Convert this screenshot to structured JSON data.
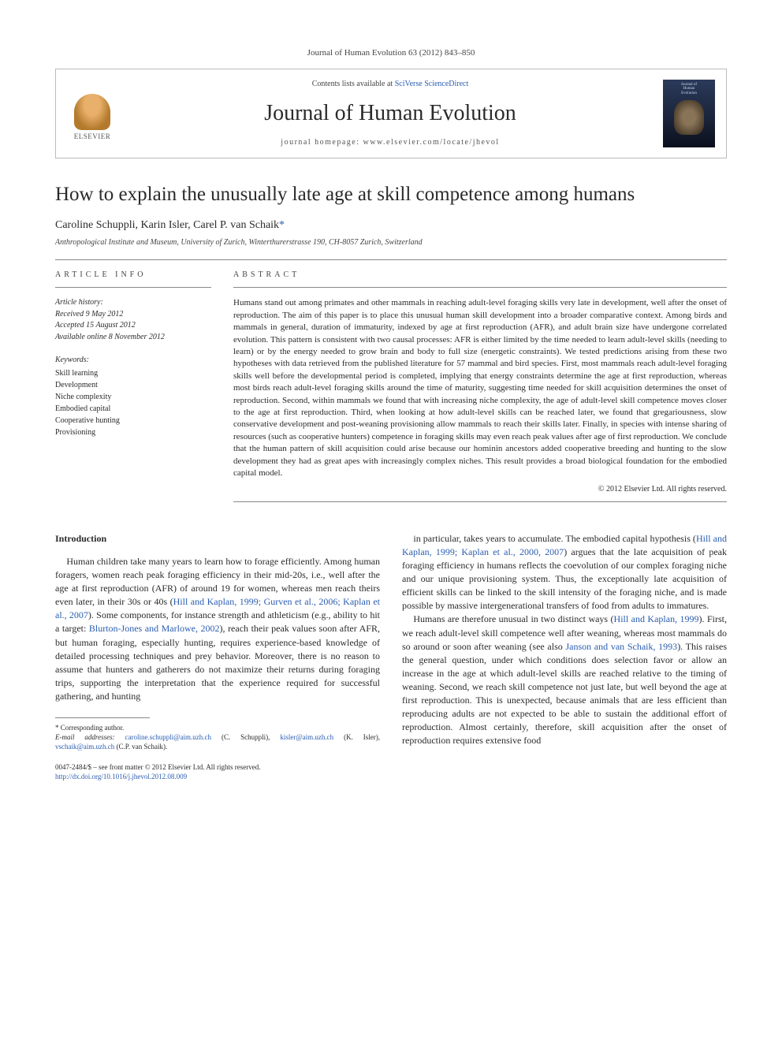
{
  "journal_ref": "Journal of Human Evolution 63 (2012) 843–850",
  "header": {
    "contents_prefix": "Contents lists available at ",
    "contents_link": "SciVerse ScienceDirect",
    "journal_name": "Journal of Human Evolution",
    "homepage_prefix": "journal homepage: ",
    "homepage_url": "www.elsevier.com/locate/jhevol",
    "publisher": "ELSEVIER",
    "cover_line1": "Journal of",
    "cover_line2": "Human",
    "cover_line3": "Evolution"
  },
  "title": "How to explain the unusually late age at skill competence among humans",
  "authors": "Caroline Schuppli, Karin Isler, Carel P. van Schaik",
  "corr_marker": "*",
  "affiliation": "Anthropological Institute and Museum, University of Zurich, Winterthurerstrasse 190, CH-8057 Zurich, Switzerland",
  "article_info_label": "ARTICLE INFO",
  "abstract_label": "ABSTRACT",
  "history": {
    "title": "Article history:",
    "received": "Received 9 May 2012",
    "accepted": "Accepted 15 August 2012",
    "online": "Available online 8 November 2012"
  },
  "keywords": {
    "title": "Keywords:",
    "items": [
      "Skill learning",
      "Development",
      "Niche complexity",
      "Embodied capital",
      "Cooperative hunting",
      "Provisioning"
    ]
  },
  "abstract": "Humans stand out among primates and other mammals in reaching adult-level foraging skills very late in development, well after the onset of reproduction. The aim of this paper is to place this unusual human skill development into a broader comparative context. Among birds and mammals in general, duration of immaturity, indexed by age at first reproduction (AFR), and adult brain size have undergone correlated evolution. This pattern is consistent with two causal processes: AFR is either limited by the time needed to learn adult-level skills (needing to learn) or by the energy needed to grow brain and body to full size (energetic constraints). We tested predictions arising from these two hypotheses with data retrieved from the published literature for 57 mammal and bird species. First, most mammals reach adult-level foraging skills well before the developmental period is completed, implying that energy constraints determine the age at first reproduction, whereas most birds reach adult-level foraging skills around the time of maturity, suggesting time needed for skill acquisition determines the onset of reproduction. Second, within mammals we found that with increasing niche complexity, the age of adult-level skill competence moves closer to the age at first reproduction. Third, when looking at how adult-level skills can be reached later, we found that gregariousness, slow conservative development and post-weaning provisioning allow mammals to reach their skills later. Finally, in species with intense sharing of resources (such as cooperative hunters) competence in foraging skills may even reach peak values after age of first reproduction. We conclude that the human pattern of skill acquisition could arise because our hominin ancestors added cooperative breeding and hunting to the slow development they had as great apes with increasingly complex niches. This result provides a broad biological foundation for the embodied capital model.",
  "copyright": "© 2012 Elsevier Ltd. All rights reserved.",
  "intro_heading": "Introduction",
  "body": {
    "p1a": "Human children take many years to learn how to forage efficiently. Among human foragers, women reach peak foraging efficiency in their mid-20s, i.e., well after the age at first reproduction (AFR) of around 19 for women, whereas men reach theirs even later, in their 30s or 40s (",
    "p1_ref1": "Hill and Kaplan, 1999; Gurven et al., 2006; Kaplan et al., 2007",
    "p1b": "). Some components, for instance strength and athleticism (e.g., ability to hit a target: ",
    "p1_ref2": "Blurton-Jones and Marlowe, 2002",
    "p1c": "), reach their peak values soon after AFR, but human foraging, especially hunting, requires experience-based knowledge of detailed processing techniques and prey behavior. Moreover, there is no reason to assume that hunters and gatherers do not maximize their returns during foraging trips, supporting the interpretation that the experience required for successful gathering, and hunting",
    "p2a": "in particular, takes years to accumulate. The embodied capital hypothesis (",
    "p2_ref1": "Hill and Kaplan, 1999; Kaplan et al., 2000, 2007",
    "p2b": ") argues that the late acquisition of peak foraging efficiency in humans reflects the coevolution of our complex foraging niche and our unique provisioning system. Thus, the exceptionally late acquisition of efficient skills can be linked to the skill intensity of the foraging niche, and is made possible by massive intergenerational transfers of food from adults to immatures.",
    "p3a": "Humans are therefore unusual in two distinct ways (",
    "p3_ref1": "Hill and Kaplan, 1999",
    "p3b": "). First, we reach adult-level skill competence well after weaning, whereas most mammals do so around or soon after weaning (see also ",
    "p3_ref2": "Janson and van Schaik, 1993",
    "p3c": "). This raises the general question, under which conditions does selection favor or allow an increase in the age at which adult-level skills are reached relative to the timing of weaning. Second, we reach skill competence not just late, but well beyond the age at first reproduction. This is unexpected, because animals that are less efficient than reproducing adults are not expected to be able to sustain the additional effort of reproduction. Almost certainly, therefore, skill acquisition after the onset of reproduction requires extensive food"
  },
  "footnote": {
    "corr_label": "* Corresponding author.",
    "email_label": "E-mail addresses: ",
    "email1": "caroline.schuppli@aim.uzh.ch",
    "name1": " (C. Schuppli), ",
    "email2": "kisler@aim.uzh.ch",
    "name2": " (K. Isler), ",
    "email3": "vschaik@aim.uzh.ch",
    "name3": " (C.P. van Schaik)."
  },
  "bottom": {
    "issn": "0047-2484/$ – see front matter © 2012 Elsevier Ltd. All rights reserved.",
    "doi": "http://dx.doi.org/10.1016/j.jhevol.2012.08.009"
  },
  "colors": {
    "link": "#2a5db0",
    "text": "#2a2a2a",
    "border": "#bbbbbb"
  }
}
